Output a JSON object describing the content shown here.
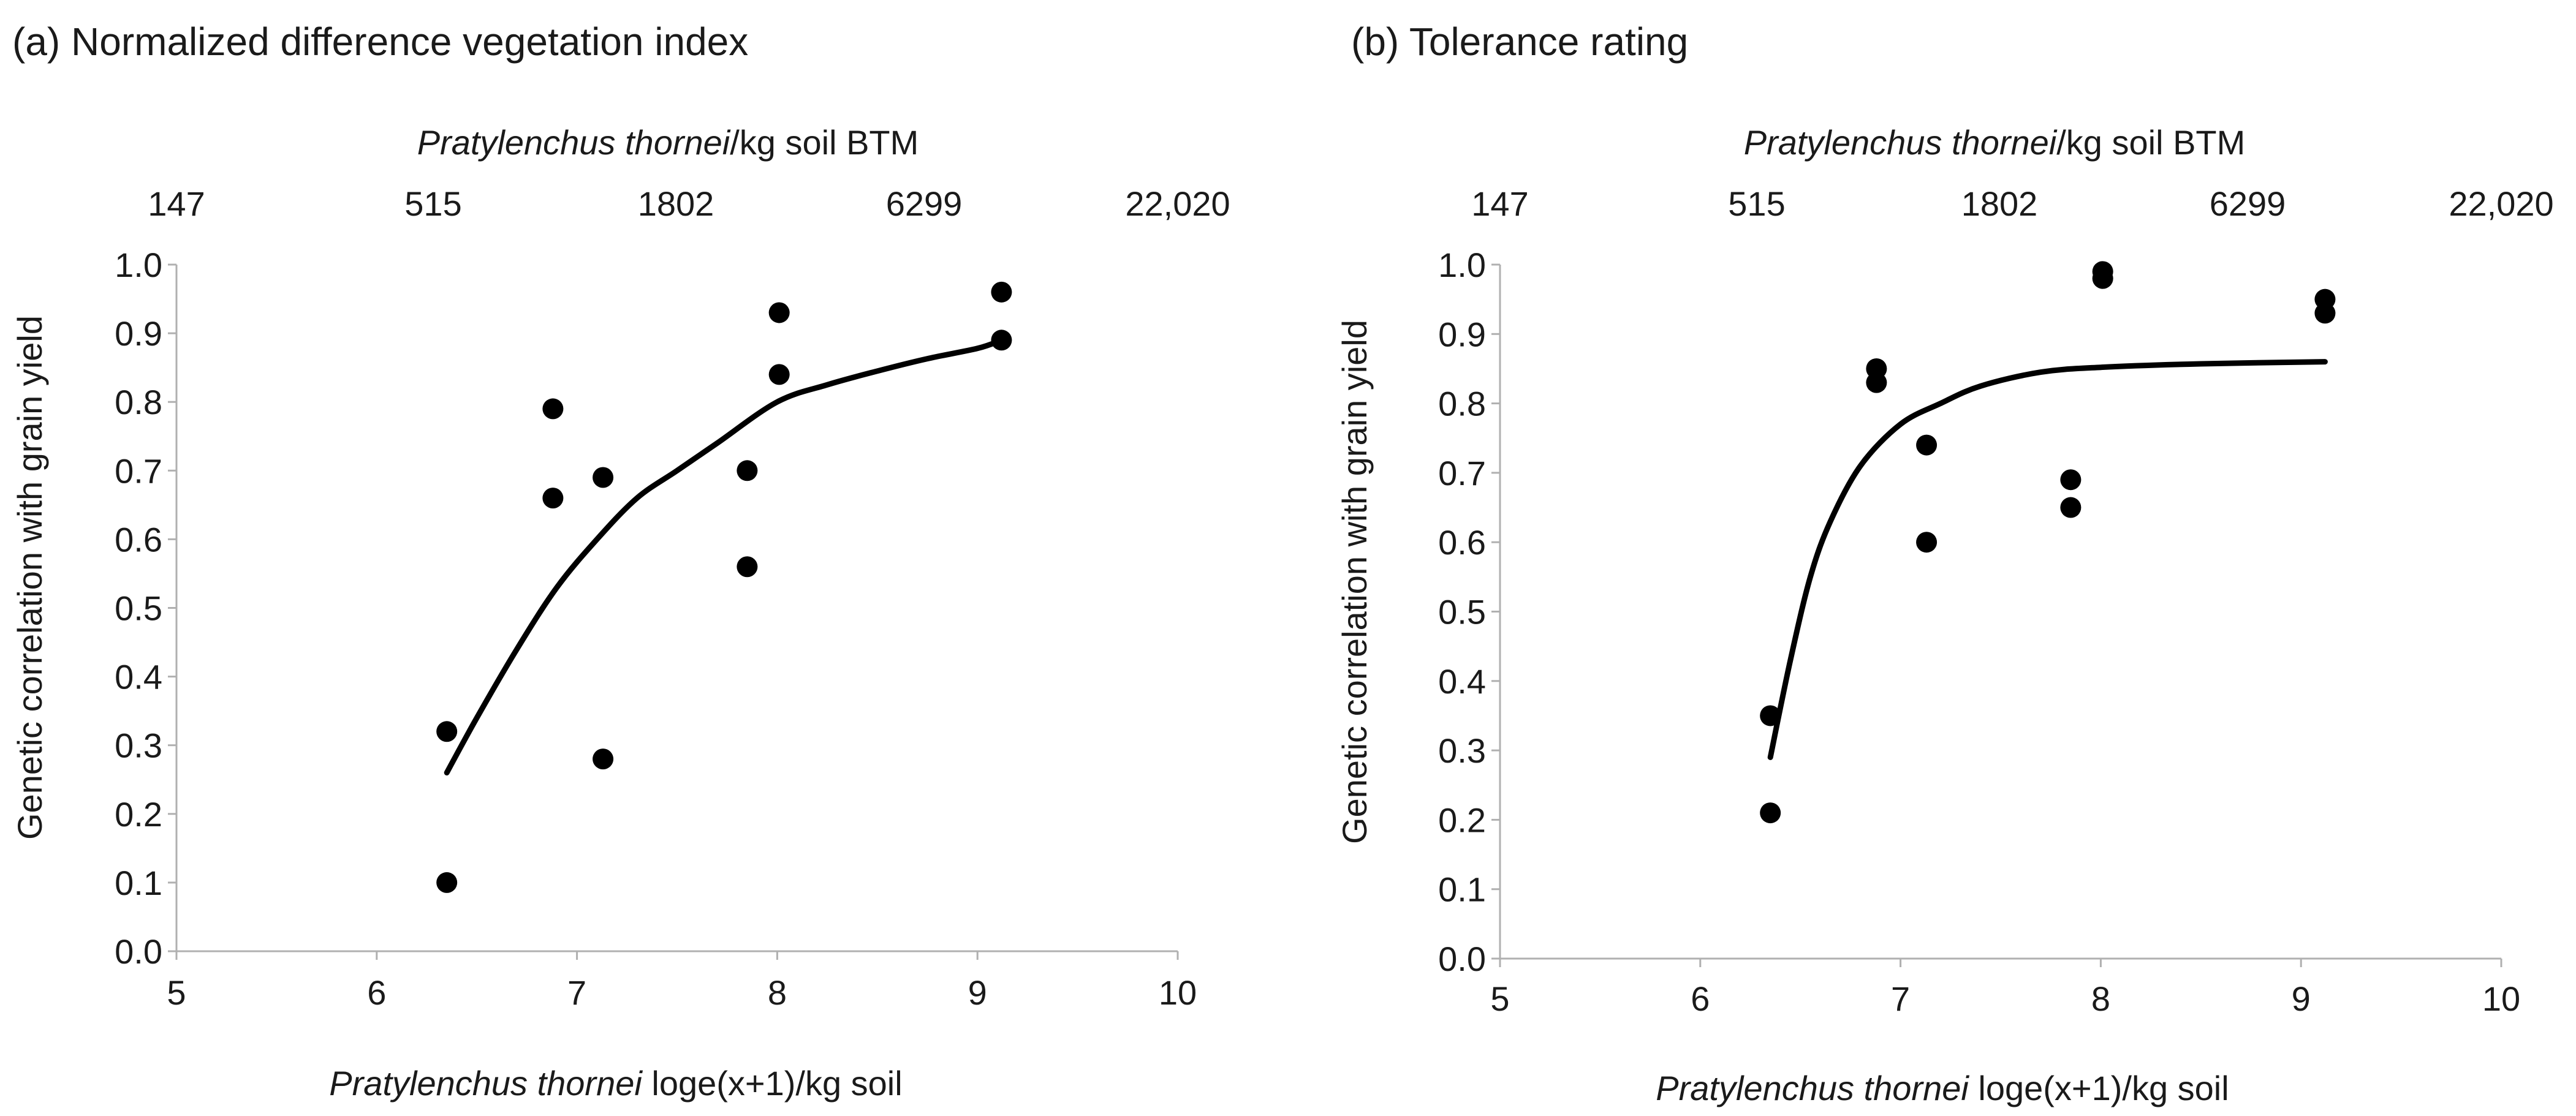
{
  "chart_data": [
    {
      "type": "scatter",
      "title": "(a) Normalized difference vegetation index",
      "xlabel_italic": "Pratylenchus thornei",
      "xlabel_rest": " loge(x+1)/kg soil",
      "ylabel": "Genetic correlation with grain yield",
      "top_xlabel_italic": "Pratylenchus thornei",
      "top_xlabel_rest": "/kg soil BTM",
      "xlim": [
        5,
        10
      ],
      "ylim": [
        0.0,
        1.0
      ],
      "xticks": [
        "5",
        "6",
        "7",
        "8",
        "9",
        "10"
      ],
      "yticks": [
        "0.0",
        "0.1",
        "0.2",
        "0.3",
        "0.4",
        "0.5",
        "0.6",
        "0.7",
        "0.8",
        "0.9",
        "1.0"
      ],
      "top_xticks": [
        "147",
        "515",
        "1802",
        "6299",
        "22,020"
      ],
      "points": [
        {
          "x": 6.35,
          "y": 0.32
        },
        {
          "x": 6.35,
          "y": 0.1
        },
        {
          "x": 6.88,
          "y": 0.79
        },
        {
          "x": 6.88,
          "y": 0.66
        },
        {
          "x": 7.13,
          "y": 0.69
        },
        {
          "x": 7.13,
          "y": 0.28
        },
        {
          "x": 7.85,
          "y": 0.7
        },
        {
          "x": 7.85,
          "y": 0.56
        },
        {
          "x": 8.01,
          "y": 0.93
        },
        {
          "x": 8.01,
          "y": 0.84
        },
        {
          "x": 9.12,
          "y": 0.96
        },
        {
          "x": 9.12,
          "y": 0.89
        }
      ],
      "fit_curve": [
        {
          "x": 6.35,
          "y": 0.26
        },
        {
          "x": 6.5,
          "y": 0.34
        },
        {
          "x": 6.7,
          "y": 0.44
        },
        {
          "x": 6.9,
          "y": 0.53
        },
        {
          "x": 7.1,
          "y": 0.6
        },
        {
          "x": 7.3,
          "y": 0.66
        },
        {
          "x": 7.5,
          "y": 0.7
        },
        {
          "x": 7.7,
          "y": 0.74
        },
        {
          "x": 8.0,
          "y": 0.8
        },
        {
          "x": 8.25,
          "y": 0.825
        },
        {
          "x": 8.5,
          "y": 0.845
        },
        {
          "x": 8.75,
          "y": 0.863
        },
        {
          "x": 9.0,
          "y": 0.878
        },
        {
          "x": 9.12,
          "y": 0.89
        }
      ]
    },
    {
      "type": "scatter",
      "title": "(b) Tolerance rating",
      "xlabel_italic": "Pratylenchus thornei",
      "xlabel_rest": " loge(x+1)/kg soil",
      "ylabel": "Genetic correlation with grain yield",
      "top_xlabel_italic": "Pratylenchus thornei",
      "top_xlabel_rest": "/kg soil BTM",
      "xlim": [
        5,
        10
      ],
      "ylim": [
        0.0,
        1.0
      ],
      "xticks": [
        "5",
        "6",
        "7",
        "8",
        "9",
        "10"
      ],
      "yticks": [
        "0.0",
        "0.1",
        "0.2",
        "0.3",
        "0.4",
        "0.5",
        "0.6",
        "0.7",
        "0.8",
        "0.9",
        "1.0"
      ],
      "top_xticks": [
        "147",
        "515",
        "1802",
        "6299",
        "22,020"
      ],
      "points": [
        {
          "x": 6.35,
          "y": 0.35
        },
        {
          "x": 6.35,
          "y": 0.21
        },
        {
          "x": 6.88,
          "y": 0.85
        },
        {
          "x": 6.88,
          "y": 0.83
        },
        {
          "x": 7.13,
          "y": 0.74
        },
        {
          "x": 7.13,
          "y": 0.6
        },
        {
          "x": 7.85,
          "y": 0.69
        },
        {
          "x": 7.85,
          "y": 0.65
        },
        {
          "x": 8.01,
          "y": 0.99
        },
        {
          "x": 8.01,
          "y": 0.98
        },
        {
          "x": 9.12,
          "y": 0.95
        },
        {
          "x": 9.12,
          "y": 0.93
        }
      ],
      "fit_curve": [
        {
          "x": 6.35,
          "y": 0.29
        },
        {
          "x": 6.45,
          "y": 0.43
        },
        {
          "x": 6.55,
          "y": 0.55
        },
        {
          "x": 6.65,
          "y": 0.63
        },
        {
          "x": 6.8,
          "y": 0.71
        },
        {
          "x": 7.0,
          "y": 0.77
        },
        {
          "x": 7.2,
          "y": 0.8
        },
        {
          "x": 7.4,
          "y": 0.825
        },
        {
          "x": 7.7,
          "y": 0.845
        },
        {
          "x": 8.0,
          "y": 0.852
        },
        {
          "x": 8.5,
          "y": 0.857
        },
        {
          "x": 9.12,
          "y": 0.86
        }
      ]
    }
  ]
}
